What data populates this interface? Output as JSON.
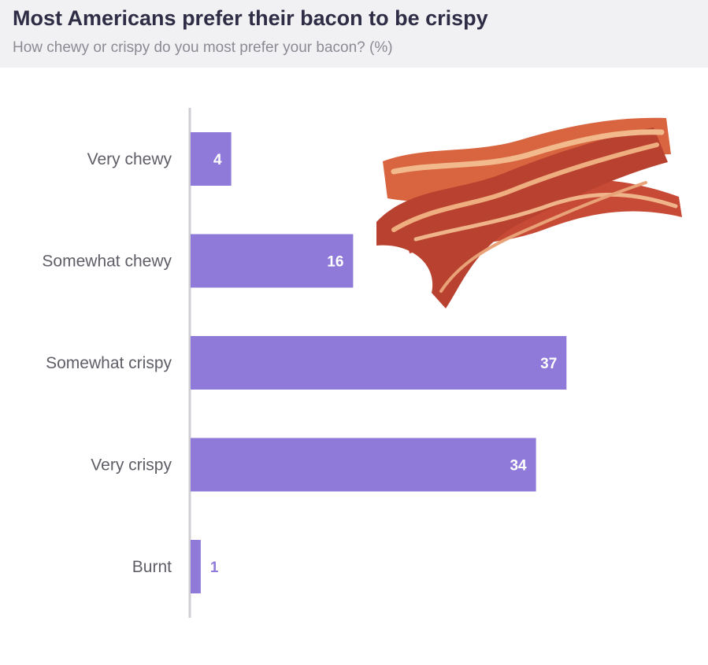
{
  "header": {
    "title": "Most Americans prefer their bacon to be crispy",
    "subtitle": "How chewy or crispy do you most prefer your bacon? (%)"
  },
  "image": {
    "icon": "bacon-strips-illustration"
  },
  "colors": {
    "bar": "#8f79d9",
    "axis": "#cfcfd3",
    "label_inside": "#ffffff",
    "label_outside": "#8f79d9",
    "header_bg": "#f1f1f4"
  },
  "chart_data": {
    "type": "bar",
    "orientation": "horizontal",
    "title": "Most Americans prefer their bacon to be crispy",
    "subtitle": "How chewy or crispy do you most prefer your bacon? (%)",
    "categories": [
      "Very chewy",
      "Somewhat chewy",
      "Somewhat crispy",
      "Very crispy",
      "Burnt"
    ],
    "values": [
      4,
      16,
      37,
      34,
      1
    ],
    "xlim": [
      0,
      60
    ],
    "grid": false,
    "legend": "none"
  }
}
